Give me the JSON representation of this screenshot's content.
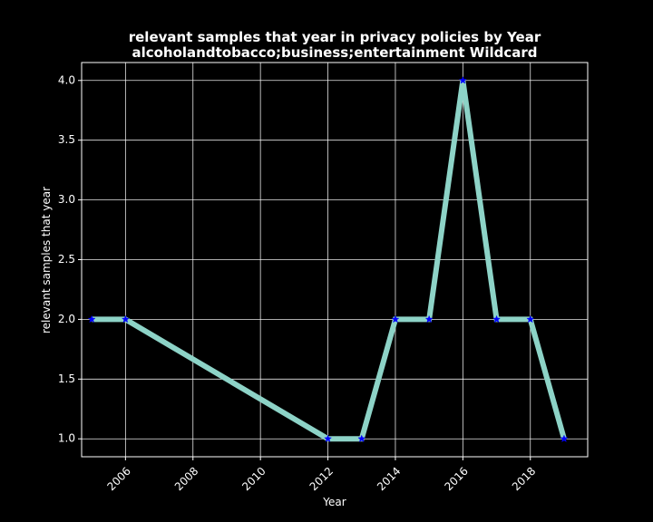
{
  "chart_data": {
    "type": "line",
    "title_line1": "relevant samples that year in privacy policies by Year",
    "title_line2": "alcoholandtobacco;business;entertainment Wildcard",
    "xlabel": "Year",
    "ylabel": "relevant samples that year",
    "x_ticks": [
      2006,
      2008,
      2010,
      2012,
      2014,
      2016,
      2018
    ],
    "y_ticks": [
      "1.0",
      "1.5",
      "2.0",
      "2.5",
      "3.0",
      "3.5",
      "4.0"
    ],
    "xlim": [
      2004.7,
      2019.7
    ],
    "ylim": [
      0.85,
      4.15
    ],
    "grid": true,
    "series": [
      {
        "x": [
          2005,
          2006,
          2012,
          2013,
          2014,
          2015,
          2016,
          2017,
          2018,
          2019
        ],
        "y": [
          2,
          2,
          1,
          1,
          2,
          2,
          4,
          2,
          2,
          1
        ]
      }
    ],
    "colors": {
      "background": "#000000",
      "line": "#8dd3c7",
      "marker": "#0000ff",
      "grid": "#ffffff",
      "text": "#ffffff"
    }
  }
}
